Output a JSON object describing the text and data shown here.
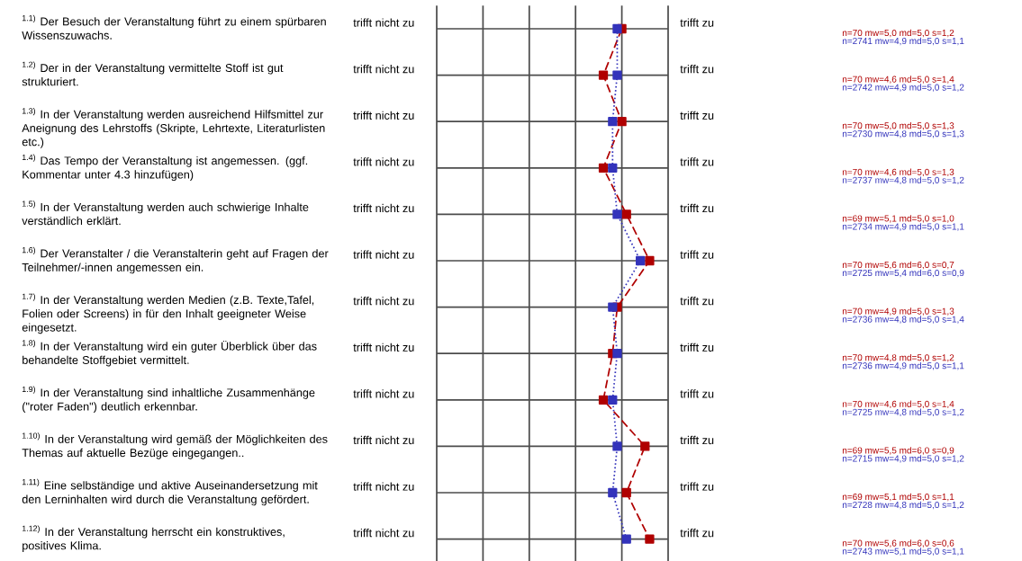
{
  "chart_data": {
    "type": "line",
    "orientation": "horizontal",
    "categories": [
      "$^{1.1)}$ Der Besuch der Veranstaltung führt zu einem spürbaren Wissenszuwachs.",
      "$^{1.2)}$ Der in der Veranstaltung vermittelte Stoff ist gut strukturiert.",
      "$^{1.3)}$ In der Veranstaltung werden ausreichend Hilfsmittel zur Aneignung des Lehrstoffs (Skripte, Lehrtexte, Literaturlisten etc.)",
      "$^{1.4)}$ Das Tempo der Veranstaltung ist angemessen. (ggf. Kommentar unter 4.3 hinzufügen)",
      "$^{1.5)}$ In der Veranstaltung werden auch schwierige Inhalte verständlich erklärt.",
      "$^{1.6)}$ Der Veranstalter / die Veranstalterin geht auf Fragen der Teilnehmer/-innen angemessen ein.",
      "$^{1.7)}$ In der Veranstaltung werden Medien (z.B. Texte,Tafel, Folien oder Screens) in für den Inhalt geeigneter Weise eingesetzt.",
      "$^{1.8)}$ In der Veranstaltung wird ein guter Überblick über das behandelte Stoffgebiet vermittelt.",
      "$^{1.9)}$ In der Veranstaltung sind inhaltliche Zusammenhänge (\"roter Faden\") deutlich erkennbar.",
      "$^{1.10)}$ In der Veranstaltung wird gemäß der Möglichkeiten des Themas auf aktuelle Bezüge eingegangen..",
      "$^{1.11)}$ Eine selbständige und aktive Auseinandersetzung mit den Lerninhalten wird durch die Veranstaltung gefördert.",
      "$^{1.12)}$ In der Veranstaltung herrscht ein konstruktives, positives Klima."
    ],
    "series": [
      {
        "color": "#b00000",
        "line_style": "dashed",
        "values": [
          5.0,
          4.6,
          5.0,
          4.6,
          5.1,
          5.6,
          4.9,
          4.8,
          4.6,
          5.5,
          5.1,
          5.6
        ],
        "value_labels": [
          "n=70 mw=5,0 md=5,0 s=1,2",
          "n=70 mw=4,6 md=5,0 s=1,4",
          "n=70 mw=5,0 md=5,0 s=1,3",
          "n=70 mw=4,6 md=5,0 s=1,3",
          "n=69 mw=5,1 md=5,0 s=1,0",
          "n=70 mw=5,6 md=6,0 s=0,7",
          "n=70 mw=4,9 md=5,0 s=1,3",
          "n=70 mw=4,8 md=5,0 s=1,2",
          "n=70 mw=4,6 md=5,0 s=1,4",
          "n=69 mw=5,5 md=6,0 s=0,9",
          "n=69 mw=5,1 md=5,0 s=1,1",
          "n=70 mw=5,6 md=6,0 s=0,6"
        ]
      },
      {
        "color": "#3333bb",
        "line_style": "dotted",
        "values": [
          4.9,
          4.9,
          4.8,
          4.8,
          4.9,
          5.4,
          4.8,
          4.9,
          4.8,
          4.9,
          4.8,
          5.1
        ],
        "value_labels": [
          "n=2741 mw=4,9 md=5,0 s=1,1",
          "n=2742 mw=4,9 md=5,0 s=1,2",
          "n=2730 mw=4,8 md=5,0 s=1,3",
          "n=2737 mw=4,8 md=5,0 s=1,2",
          "n=2734 mw=4,9 md=5,0 s=1,1",
          "n=2725 mw=5,4 md=6,0 s=0,9",
          "n=2736 mw=4,8 md=5,0 s=1,4",
          "n=2736 mw=4,9 md=5,0 s=1,1",
          "n=2725 mw=4,8 md=5,0 s=1,2",
          "n=2715 mw=4,9 md=5,0 s=1,2",
          "n=2728 mw=4,8 md=5,0 s=1,2",
          "n=2743 mw=5,1 md=5,0 s=1,1"
        ]
      }
    ],
    "xlim": [
      1,
      6
    ],
    "xticks": [
      {
        "value": 1,
        "label": null
      },
      {
        "value": 2,
        "label": null
      },
      {
        "value": 3,
        "label": null
      },
      {
        "value": 4,
        "label": null
      },
      {
        "value": 5,
        "label": null
      },
      {
        "value": 6,
        "label": null
      }
    ],
    "annotations": [
      "trifft nicht zu",
      "trifft zu"
    ],
    "grid": true,
    "marker": "square"
  }
}
